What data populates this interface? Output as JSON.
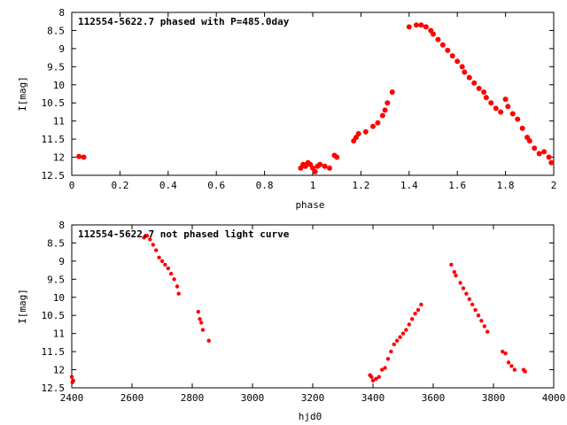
{
  "chart_data": [
    {
      "type": "scatter",
      "title": "112554-5622.7 phased with P=485.0day",
      "xlabel": "phase",
      "ylabel": "I[mag]",
      "xlim": [
        0,
        2
      ],
      "ylim": [
        8,
        12.5
      ],
      "y_inverted": true,
      "xticks": [
        "0",
        "0.2",
        "0.4",
        "0.6",
        "0.8",
        "1",
        "1.2",
        "1.4",
        "1.6",
        "1.8",
        "2"
      ],
      "yticks": [
        "8",
        "8.5",
        "9",
        "9.5",
        "10",
        "10.5",
        "11",
        "11.5",
        "12",
        "12.5"
      ],
      "grid": false,
      "color": "#ff0000",
      "series": [
        {
          "x": [
            0.03,
            0.05,
            0.95,
            0.96,
            0.97,
            0.98,
            0.99,
            1.0,
            1.01,
            1.02,
            1.03,
            1.05,
            1.07,
            1.09,
            1.1,
            1.17,
            1.18,
            1.19,
            1.22,
            1.25,
            1.27,
            1.29,
            1.3,
            1.31,
            1.33,
            1.4,
            1.43,
            1.45,
            1.47,
            1.49,
            1.5,
            1.52,
            1.54,
            1.56,
            1.58,
            1.6,
            1.62,
            1.63,
            1.65,
            1.67,
            1.69,
            1.71,
            1.72,
            1.74,
            1.76,
            1.78,
            1.8,
            1.81,
            1.83,
            1.85,
            1.87,
            1.89,
            1.9,
            1.92,
            1.94,
            1.96,
            1.98,
            1.99
          ],
          "y": [
            11.98,
            12.0,
            12.3,
            12.2,
            12.25,
            12.15,
            12.2,
            12.3,
            12.4,
            12.25,
            12.2,
            12.25,
            12.3,
            11.95,
            12.0,
            11.55,
            11.45,
            11.35,
            11.3,
            11.15,
            11.05,
            10.85,
            10.7,
            10.5,
            10.2,
            8.4,
            8.35,
            8.35,
            8.4,
            8.5,
            8.6,
            8.75,
            8.9,
            9.05,
            9.2,
            9.35,
            9.5,
            9.65,
            9.8,
            9.95,
            10.1,
            10.2,
            10.35,
            10.5,
            10.65,
            10.75,
            10.4,
            10.6,
            10.8,
            10.95,
            11.2,
            11.45,
            11.55,
            11.75,
            11.9,
            11.85,
            12.0,
            12.15
          ]
        }
      ]
    },
    {
      "type": "scatter",
      "title": "112554-5622.7 not phased light curve",
      "xlabel": "hjd0",
      "ylabel": "I[mag]",
      "xlim": [
        2400,
        4000
      ],
      "ylim": [
        8,
        12.5
      ],
      "y_inverted": true,
      "xticks": [
        "2400",
        "2600",
        "2800",
        "3000",
        "3200",
        "3400",
        "3600",
        "3800",
        "4000"
      ],
      "yticks": [
        "8",
        "8.5",
        "9",
        "9.5",
        "10",
        "10.5",
        "11",
        "11.5",
        "12",
        "12.5"
      ],
      "grid": false,
      "color": "#ff0000",
      "series": [
        {
          "x": [
            2400,
            2402,
            2405,
            2640,
            2645,
            2650,
            2660,
            2670,
            2680,
            2690,
            2700,
            2710,
            2720,
            2730,
            2740,
            2750,
            2755,
            2820,
            2825,
            2830,
            2835,
            2855,
            3390,
            3395,
            3400,
            3410,
            3420,
            3430,
            3440,
            3450,
            3460,
            3470,
            3480,
            3490,
            3500,
            3510,
            3520,
            3530,
            3540,
            3550,
            3560,
            3660,
            3670,
            3675,
            3690,
            3700,
            3710,
            3720,
            3730,
            3740,
            3750,
            3760,
            3770,
            3780,
            3830,
            3840,
            3850,
            3860,
            3870,
            3900,
            3905
          ],
          "y": [
            12.2,
            12.35,
            12.3,
            8.35,
            8.3,
            8.3,
            8.4,
            8.55,
            8.7,
            8.9,
            9.0,
            9.1,
            9.2,
            9.35,
            9.5,
            9.7,
            9.9,
            10.4,
            10.6,
            10.7,
            10.9,
            11.2,
            12.15,
            12.2,
            12.3,
            12.25,
            12.2,
            12.0,
            11.95,
            11.7,
            11.5,
            11.3,
            11.2,
            11.1,
            11.0,
            10.9,
            10.75,
            10.6,
            10.45,
            10.35,
            10.2,
            9.1,
            9.3,
            9.4,
            9.6,
            9.75,
            9.9,
            10.05,
            10.2,
            10.35,
            10.5,
            10.65,
            10.8,
            10.95,
            11.5,
            11.55,
            11.8,
            11.9,
            12.0,
            12.0,
            12.05
          ]
        }
      ]
    }
  ]
}
